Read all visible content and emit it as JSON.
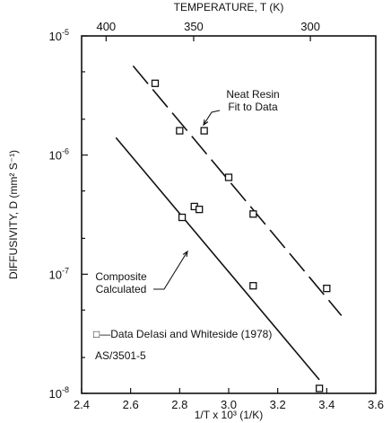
{
  "chart_data": {
    "type": "scatter",
    "title": "",
    "xlabel": "1/T x 10³ (1/K)",
    "ylabel": "DIFFUSIVITY, D (mm² S⁻¹)",
    "top_axis_label": "TEMPERATURE, T (K)",
    "xlim": [
      2.4,
      3.6
    ],
    "ylim": [
      1e-08,
      1e-05
    ],
    "y_scale": "log",
    "grid": false,
    "x_ticks": [
      "2.4",
      "2.6",
      "2.8",
      "3.0",
      "3.2",
      "3.4",
      "3.6"
    ],
    "y_ticks": [
      {
        "base": "10",
        "exp": "-5",
        "value": 1e-05
      },
      {
        "base": "10",
        "exp": "-6",
        "value": 1e-06
      },
      {
        "base": "10",
        "exp": "-7",
        "value": 1e-07
      },
      {
        "base": "10",
        "exp": "-8",
        "value": 1e-08
      }
    ],
    "top_ticks": [
      {
        "label": "400",
        "temperature_K": 400
      },
      {
        "label": "350",
        "temperature_K": 350
      },
      {
        "label": "300",
        "temperature_K": 300
      }
    ],
    "series": [
      {
        "name": "Data DeIasi and Whiteside (1978)",
        "marker": "open-square",
        "x": [
          2.7,
          2.8,
          2.9,
          2.81,
          2.86,
          2.88,
          3.0,
          3.1,
          3.1,
          3.4,
          3.37
        ],
        "y": [
          4e-06,
          1.6e-06,
          1.6e-06,
          3e-07,
          3.7e-07,
          3.5e-07,
          6.5e-07,
          3.2e-07,
          8e-08,
          7.6e-08,
          1.1e-08
        ]
      }
    ],
    "lines": [
      {
        "name": "Neat Resin Fit to Data",
        "style": "dashed",
        "x": [
          2.61,
          3.46
        ],
        "y": [
          5.6e-06,
          4.5e-08
        ]
      },
      {
        "name": "Composite Calculated",
        "style": "solid",
        "x": [
          2.54,
          3.37
        ],
        "y": [
          1.4e-06,
          1.3e-08
        ]
      }
    ],
    "annotations": [
      {
        "id": "neat",
        "lines": [
          "Neat Resin",
          "Fit to Data"
        ],
        "points_to": "Neat Resin Fit to Data"
      },
      {
        "id": "composite",
        "lines": [
          "Composite",
          "Calculated"
        ],
        "points_to": "Composite Calculated"
      },
      {
        "id": "legend",
        "lines": [
          "□—Data DeIasi and Whiteside (1978)"
        ],
        "placement": "bottom-left"
      },
      {
        "id": "material",
        "lines": [
          "AS/3501-5"
        ],
        "placement": "bottom-left"
      }
    ]
  }
}
